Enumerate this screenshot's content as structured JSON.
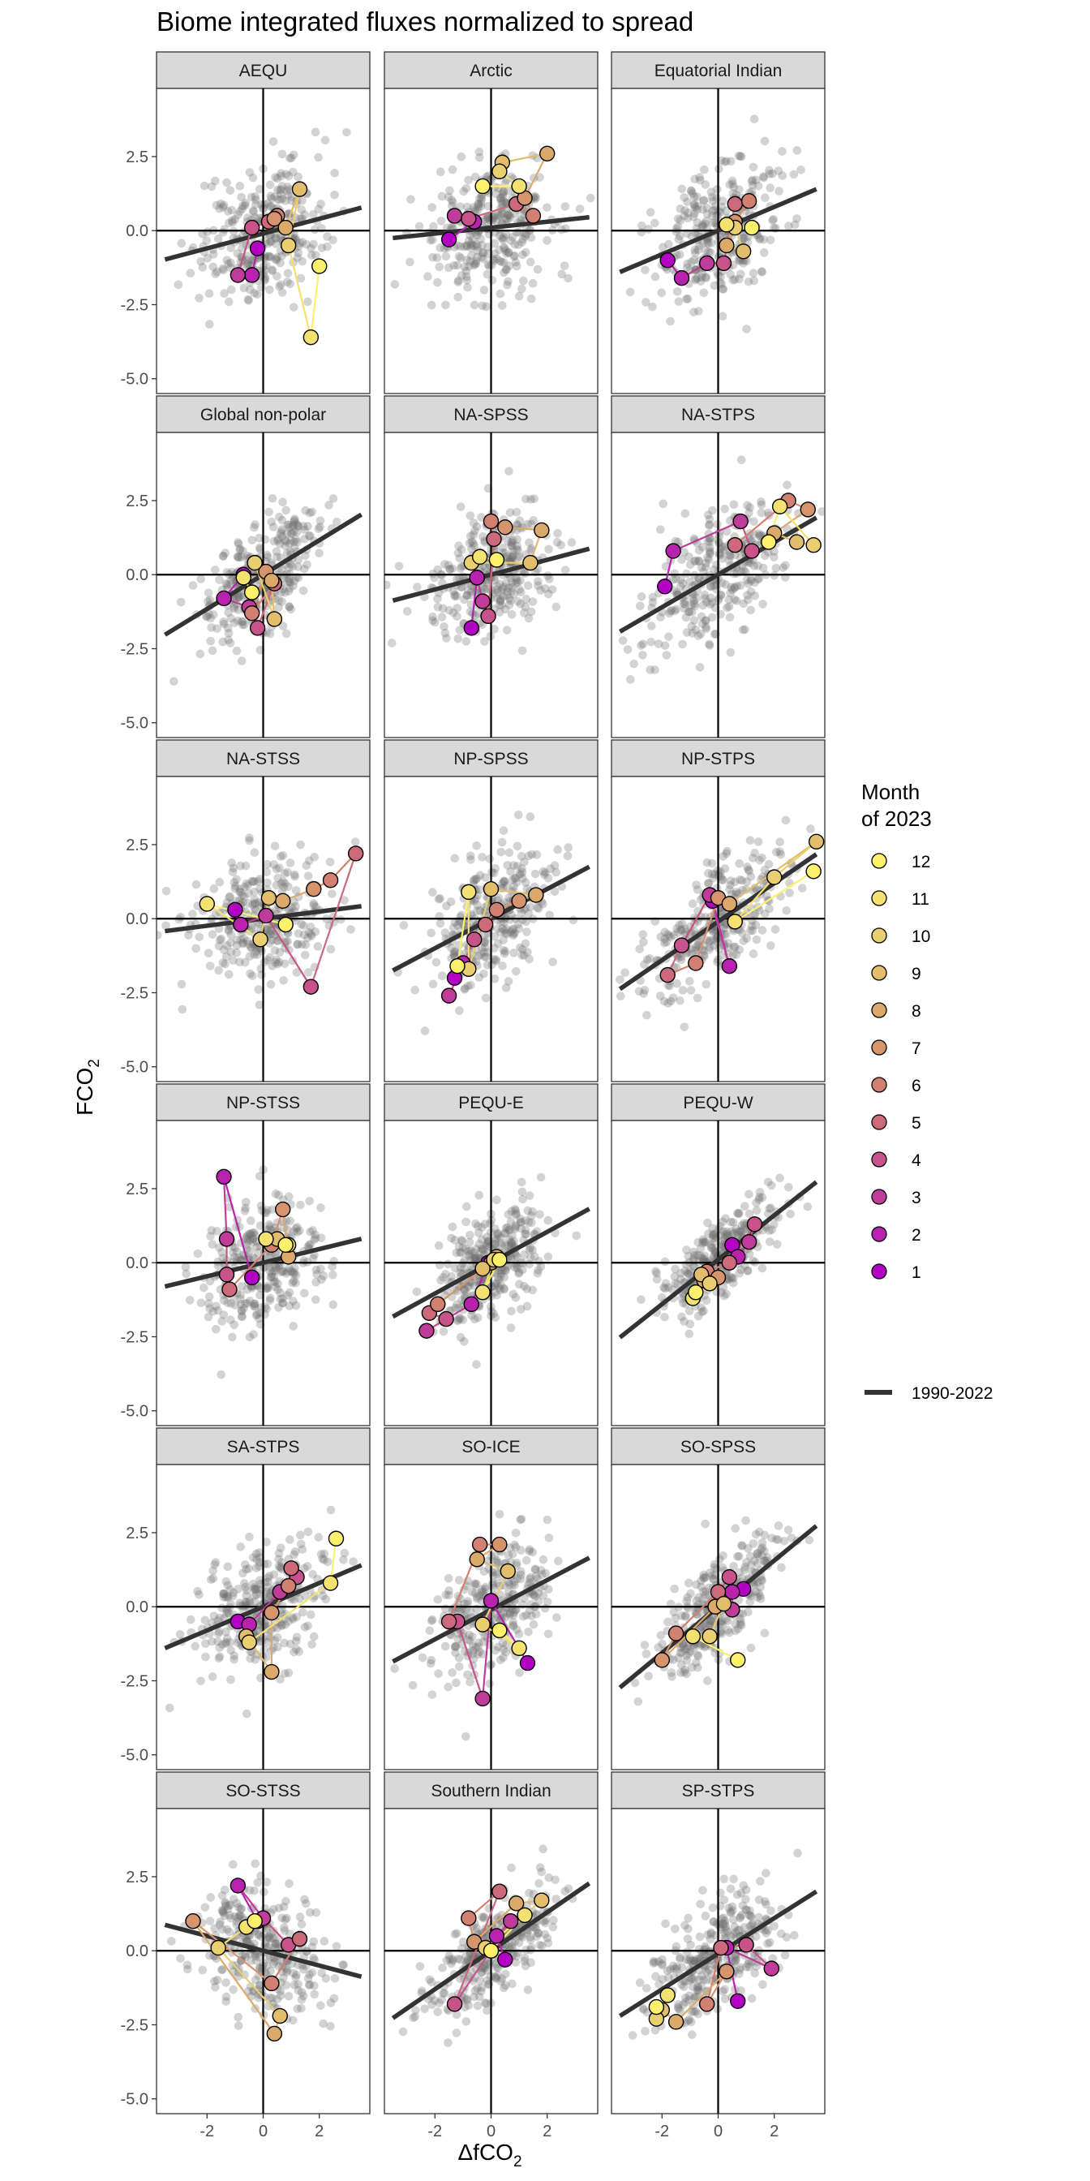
{
  "chart_data": {
    "type": "scatter",
    "title": "Biome integrated fluxes normalized to spread",
    "xlabel": "ΔfCO2",
    "ylabel": "FCO2",
    "xlim": [
      -3.8,
      3.8
    ],
    "ylim": [
      -5.5,
      4.8
    ],
    "xticks": [
      -2,
      0,
      2
    ],
    "yticks": [
      2.5,
      0.0,
      -2.5,
      -5.0
    ],
    "ytick_labels": [
      "2.5",
      "0.0",
      "-2.5",
      "-5.0"
    ],
    "grid": false,
    "legend_position": "right",
    "legend": {
      "title_line1": "Month",
      "title_line2": "of 2023",
      "months": [
        12,
        11,
        10,
        9,
        8,
        7,
        6,
        5,
        4,
        3,
        2,
        1
      ],
      "line_label": "1990-2022"
    },
    "month_colors": [
      "#b300c4",
      "#b822ae",
      "#c03c9a",
      "#c7538a",
      "#cc6a7c",
      "#d28072",
      "#d6946c",
      "#dba96a",
      "#e1bd6c",
      "#e9cf6f",
      "#f3e170",
      "#fdf16c"
    ],
    "panels": [
      {
        "name": "AEQU",
        "slope": 0.25,
        "intercept": -0.1,
        "spread_x": 1.1,
        "spread_y": 1.3,
        "months": [
          [
            -0.2,
            -0.6
          ],
          [
            -0.4,
            -1.5
          ],
          [
            -0.9,
            -1.5
          ],
          [
            -0.4,
            0.1
          ],
          [
            0.2,
            0.3
          ],
          [
            0.5,
            0.5
          ],
          [
            0.4,
            0.4
          ],
          [
            0.8,
            0.1
          ],
          [
            1.3,
            1.4
          ],
          [
            0.9,
            -0.5
          ],
          [
            1.7,
            -3.6
          ],
          [
            2.0,
            -1.2
          ]
        ]
      },
      {
        "name": "Arctic",
        "slope": 0.1,
        "intercept": 0.1,
        "spread_x": 1.1,
        "spread_y": 1.3,
        "months": [
          [
            -1.5,
            -0.3
          ],
          [
            -0.6,
            0.3
          ],
          [
            -1.3,
            0.5
          ],
          [
            -0.8,
            0.4
          ],
          [
            0.9,
            0.9
          ],
          [
            1.5,
            0.5
          ],
          [
            1.2,
            1.1
          ],
          [
            2.0,
            2.6
          ],
          [
            0.4,
            2.3
          ],
          [
            0.3,
            2.0
          ],
          [
            1.0,
            1.5
          ],
          [
            -0.3,
            1.5
          ]
        ]
      },
      {
        "name": "Equatorial Indian",
        "slope": 0.4,
        "intercept": 0.0,
        "spread_x": 1.1,
        "spread_y": 1.3,
        "months": [
          [
            -1.8,
            -1.0
          ],
          [
            -1.3,
            -1.6
          ],
          [
            -0.4,
            -1.1
          ],
          [
            0.2,
            -1.1
          ],
          [
            0.6,
            0.9
          ],
          [
            1.1,
            1.0
          ],
          [
            0.6,
            0.3
          ],
          [
            0.3,
            -0.5
          ],
          [
            0.9,
            -0.7
          ],
          [
            0.6,
            0.1
          ],
          [
            0.3,
            0.2
          ],
          [
            1.2,
            0.1
          ]
        ]
      },
      {
        "name": "Global non-polar",
        "slope": 0.58,
        "intercept": 0.0,
        "spread_x": 1.0,
        "spread_y": 1.1,
        "months": [
          [
            -0.7,
            0.0
          ],
          [
            -1.4,
            -0.8
          ],
          [
            -0.5,
            -1.1
          ],
          [
            -0.2,
            -1.8
          ],
          [
            0.4,
            -0.3
          ],
          [
            -0.4,
            -1.3
          ],
          [
            0.1,
            0.1
          ],
          [
            0.3,
            -0.2
          ],
          [
            0.4,
            -1.5
          ],
          [
            -0.3,
            0.4
          ],
          [
            -0.7,
            -0.1
          ],
          [
            -0.4,
            -0.6
          ]
        ]
      },
      {
        "name": "NA-SPSS",
        "slope": 0.25,
        "intercept": 0.0,
        "spread_x": 1.1,
        "spread_y": 1.2,
        "months": [
          [
            -0.7,
            -1.8
          ],
          [
            -0.5,
            -0.1
          ],
          [
            -0.3,
            -0.9
          ],
          [
            -0.1,
            -1.4
          ],
          [
            0.1,
            1.2
          ],
          [
            0.0,
            1.8
          ],
          [
            0.5,
            1.6
          ],
          [
            1.8,
            1.5
          ],
          [
            1.4,
            0.4
          ],
          [
            -0.7,
            0.4
          ],
          [
            -0.4,
            0.6
          ],
          [
            0.2,
            0.5
          ]
        ]
      },
      {
        "name": "NA-STPS",
        "slope": 0.55,
        "intercept": 0.0,
        "spread_x": 1.3,
        "spread_y": 1.2,
        "months": [
          [
            -1.9,
            -0.4
          ],
          [
            -1.6,
            0.8
          ],
          [
            0.8,
            1.8
          ],
          [
            1.2,
            0.8
          ],
          [
            0.6,
            1.0
          ],
          [
            2.5,
            2.5
          ],
          [
            3.2,
            2.2
          ],
          [
            2.0,
            1.4
          ],
          [
            2.8,
            1.1
          ],
          [
            3.4,
            1.0
          ],
          [
            2.2,
            2.3
          ],
          [
            1.8,
            1.1
          ]
        ]
      },
      {
        "name": "NA-STSS",
        "slope": 0.12,
        "intercept": 0.0,
        "spread_x": 1.2,
        "spread_y": 1.2,
        "months": [
          [
            -1.0,
            0.3
          ],
          [
            -0.8,
            -0.2
          ],
          [
            0.1,
            0.1
          ],
          [
            1.7,
            -2.3
          ],
          [
            3.3,
            2.2
          ],
          [
            2.4,
            1.3
          ],
          [
            1.8,
            1.0
          ],
          [
            0.7,
            0.6
          ],
          [
            0.2,
            0.7
          ],
          [
            -0.1,
            -0.7
          ],
          [
            -2.0,
            0.5
          ],
          [
            0.8,
            -0.2
          ]
        ]
      },
      {
        "name": "NP-SPSS",
        "slope": 0.5,
        "intercept": 0.0,
        "spread_x": 1.1,
        "spread_y": 1.2,
        "months": [
          [
            -1.3,
            -2.0
          ],
          [
            -1.0,
            -1.5
          ],
          [
            -1.5,
            -2.6
          ],
          [
            -0.6,
            -0.7
          ],
          [
            -0.2,
            -0.2
          ],
          [
            0.2,
            0.3
          ],
          [
            1.0,
            0.6
          ],
          [
            1.6,
            0.8
          ],
          [
            0.0,
            1.0
          ],
          [
            -0.8,
            -1.7
          ],
          [
            -0.8,
            0.9
          ],
          [
            -1.2,
            -1.6
          ]
        ]
      },
      {
        "name": "NP-STPS",
        "slope": 0.65,
        "intercept": -0.1,
        "spread_x": 1.2,
        "spread_y": 1.1,
        "months": [
          [
            -0.2,
            0.6
          ],
          [
            0.4,
            -1.6
          ],
          [
            -0.3,
            0.8
          ],
          [
            -1.3,
            -0.9
          ],
          [
            -1.8,
            -1.9
          ],
          [
            -0.8,
            -1.5
          ],
          [
            0.0,
            0.7
          ],
          [
            0.4,
            0.5
          ],
          [
            3.5,
            2.6
          ],
          [
            2.0,
            1.4
          ],
          [
            0.6,
            -0.1
          ],
          [
            3.4,
            1.6
          ]
        ]
      },
      {
        "name": "NP-STSS",
        "slope": 0.23,
        "intercept": 0.0,
        "spread_x": 1.1,
        "spread_y": 1.2,
        "months": [
          [
            -0.4,
            -0.5
          ],
          [
            -1.4,
            2.9
          ],
          [
            -1.3,
            0.8
          ],
          [
            -1.3,
            -0.4
          ],
          [
            -1.2,
            -0.9
          ],
          [
            0.3,
            0.6
          ],
          [
            0.7,
            1.8
          ],
          [
            0.9,
            0.2
          ],
          [
            0.5,
            0.8
          ],
          [
            0.9,
            0.6
          ],
          [
            0.1,
            0.8
          ],
          [
            0.8,
            0.6
          ]
        ]
      },
      {
        "name": "PEQU-E",
        "slope": 0.52,
        "intercept": 0.0,
        "spread_x": 0.9,
        "spread_y": 1.0,
        "months": [
          [
            -0.1,
            0.0
          ],
          [
            -0.7,
            -1.4
          ],
          [
            -2.3,
            -2.3
          ],
          [
            -1.6,
            -1.9
          ],
          [
            -2.2,
            -1.7
          ],
          [
            -1.9,
            -1.4
          ],
          [
            0.0,
            0.0
          ],
          [
            0.2,
            0.2
          ],
          [
            -0.3,
            -0.2
          ],
          [
            0.1,
            0.1
          ],
          [
            -0.3,
            -1.0
          ],
          [
            0.3,
            0.1
          ]
        ]
      },
      {
        "name": "PEQU-W",
        "slope": 0.75,
        "intercept": 0.1,
        "spread_x": 1.0,
        "spread_y": 0.8,
        "months": [
          [
            0.5,
            0.6
          ],
          [
            0.7,
            0.2
          ],
          [
            1.1,
            0.7
          ],
          [
            1.3,
            1.3
          ],
          [
            0.4,
            0.0
          ],
          [
            -0.4,
            -0.3
          ],
          [
            0.0,
            -0.5
          ],
          [
            -0.5,
            -0.6
          ],
          [
            -0.6,
            -0.4
          ],
          [
            -0.3,
            -0.7
          ],
          [
            -0.9,
            -1.2
          ],
          [
            -0.8,
            -1.0
          ]
        ]
      },
      {
        "name": "SA-STPS",
        "slope": 0.4,
        "intercept": 0.0,
        "spread_x": 1.2,
        "spread_y": 1.2,
        "months": [
          [
            -0.9,
            -0.5
          ],
          [
            -0.5,
            -0.6
          ],
          [
            0.6,
            0.5
          ],
          [
            1.2,
            1.0
          ],
          [
            1.0,
            1.3
          ],
          [
            0.9,
            0.7
          ],
          [
            0.3,
            -0.2
          ],
          [
            0.3,
            -2.2
          ],
          [
            -0.6,
            -1.0
          ],
          [
            -0.5,
            -1.2
          ],
          [
            2.4,
            0.8
          ],
          [
            2.6,
            2.3
          ]
        ]
      },
      {
        "name": "SO-ICE",
        "slope": 0.5,
        "intercept": -0.1,
        "spread_x": 1.1,
        "spread_y": 1.2,
        "months": [
          [
            1.3,
            -1.9
          ],
          [
            0.0,
            0.2
          ],
          [
            -0.3,
            -3.1
          ],
          [
            -1.2,
            -0.5
          ],
          [
            -1.5,
            -0.5
          ],
          [
            -0.4,
            2.1
          ],
          [
            0.3,
            2.1
          ],
          [
            -0.5,
            1.6
          ],
          [
            0.6,
            1.2
          ],
          [
            -0.3,
            -0.6
          ],
          [
            1.0,
            -1.4
          ],
          [
            0.3,
            -0.8
          ]
        ]
      },
      {
        "name": "SO-SPSS",
        "slope": 0.78,
        "intercept": 0.0,
        "spread_x": 1.1,
        "spread_y": 0.9,
        "months": [
          [
            0.9,
            0.6
          ],
          [
            0.5,
            0.5
          ],
          [
            0.5,
            -0.1
          ],
          [
            0.4,
            1.0
          ],
          [
            0.0,
            0.5
          ],
          [
            -1.5,
            -0.9
          ],
          [
            -2.0,
            -1.8
          ],
          [
            -0.1,
            0.0
          ],
          [
            0.2,
            0.1
          ],
          [
            -0.3,
            -1.0
          ],
          [
            -0.9,
            -1.0
          ],
          [
            0.7,
            -1.8
          ]
        ]
      },
      {
        "name": "SO-STSS",
        "slope": -0.25,
        "intercept": 0.0,
        "spread_x": 1.2,
        "spread_y": 1.2,
        "months": [
          [
            -0.2,
            1.0
          ],
          [
            -0.9,
            2.2
          ],
          [
            0.0,
            1.1
          ],
          [
            0.9,
            0.2
          ],
          [
            1.3,
            0.4
          ],
          [
            0.3,
            -1.1
          ],
          [
            -2.5,
            1.0
          ],
          [
            0.4,
            -2.8
          ],
          [
            0.6,
            -2.2
          ],
          [
            -1.6,
            0.1
          ],
          [
            -0.6,
            0.8
          ],
          [
            -0.3,
            1.0
          ]
        ]
      },
      {
        "name": "Southern Indian",
        "slope": 0.65,
        "intercept": 0.0,
        "spread_x": 1.1,
        "spread_y": 0.9,
        "months": [
          [
            0.5,
            -0.3
          ],
          [
            0.2,
            0.5
          ],
          [
            0.7,
            1.0
          ],
          [
            -1.3,
            -1.8
          ],
          [
            0.3,
            2.0
          ],
          [
            -0.8,
            1.1
          ],
          [
            -0.6,
            0.3
          ],
          [
            0.9,
            1.6
          ],
          [
            1.8,
            1.7
          ],
          [
            -0.2,
            0.1
          ],
          [
            1.2,
            1.2
          ],
          [
            0.0,
            0.0
          ]
        ]
      },
      {
        "name": "SP-STPS",
        "slope": 0.6,
        "intercept": -0.1,
        "spread_x": 1.1,
        "spread_y": 1.0,
        "months": [
          [
            0.7,
            -1.7
          ],
          [
            0.3,
            0.1
          ],
          [
            1.9,
            -0.6
          ],
          [
            1.0,
            0.2
          ],
          [
            0.1,
            0.1
          ],
          [
            -0.4,
            -1.8
          ],
          [
            0.3,
            -0.7
          ],
          [
            -1.5,
            -2.4
          ],
          [
            -2.0,
            -2.0
          ],
          [
            -2.2,
            -2.3
          ],
          [
            -1.8,
            -1.5
          ],
          [
            -2.2,
            -1.9
          ]
        ]
      }
    ]
  }
}
